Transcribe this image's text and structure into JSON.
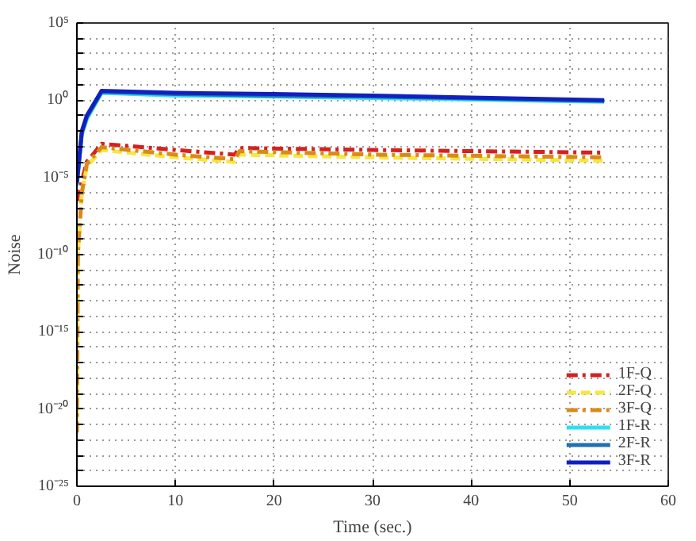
{
  "chart_data": {
    "type": "line",
    "xlabel": "Time (sec.)",
    "ylabel": "Noise",
    "log": "y",
    "grid": true,
    "legend": "bottom right",
    "marker": "none",
    "xlim": [
      0,
      60
    ],
    "xticks": [
      0,
      10,
      20,
      30,
      40,
      50,
      60
    ],
    "ylim": [
      1e-25,
      100000.0
    ],
    "yticks": [
      {
        "value": 1e-25,
        "label": "10⁻²⁵"
      },
      {
        "value": 1e-24,
        "label": null
      },
      {
        "value": 1e-23,
        "label": null
      },
      {
        "value": 1e-22,
        "label": null
      },
      {
        "value": 1e-21,
        "label": null
      },
      {
        "value": 1e-20,
        "label": "10⁻²⁰"
      },
      {
        "value": 1e-19,
        "label": null
      },
      {
        "value": 1e-18,
        "label": null
      },
      {
        "value": 1e-17,
        "label": null
      },
      {
        "value": 1e-16,
        "label": null
      },
      {
        "value": 1e-15,
        "label": "10⁻¹⁵"
      },
      {
        "value": 1e-14,
        "label": null
      },
      {
        "value": 1e-13,
        "label": null
      },
      {
        "value": 1e-12,
        "label": null
      },
      {
        "value": 1e-11,
        "label": null
      },
      {
        "value": 1e-10,
        "label": "10⁻¹⁰"
      },
      {
        "value": 1e-09,
        "label": null
      },
      {
        "value": 1e-08,
        "label": null
      },
      {
        "value": 1e-07,
        "label": null
      },
      {
        "value": 1e-06,
        "label": null
      },
      {
        "value": 1e-05,
        "label": "10⁻⁵"
      },
      {
        "value": 0.0001,
        "label": null
      },
      {
        "value": 0.001,
        "label": null
      },
      {
        "value": 0.01,
        "label": null
      },
      {
        "value": 0.1,
        "label": null
      },
      {
        "value": 1,
        "label": "10⁰"
      },
      {
        "value": 10,
        "label": null
      },
      {
        "value": 100,
        "label": null
      },
      {
        "value": 1000,
        "label": null
      },
      {
        "value": 10000,
        "label": null
      },
      {
        "value": 100000,
        "label": "10⁵"
      }
    ],
    "series": [
      {
        "name": "1F-Q",
        "color": "#d62020",
        "line_style": "dashdot",
        "x": [
          0,
          0.2,
          1,
          2.5,
          10,
          16,
          16.5,
          30,
          53.5
        ],
        "values": [
          3e-07,
          1e-06,
          0.0001,
          0.0015,
          0.0006,
          0.0003,
          0.0008,
          0.0006,
          0.0004
        ]
      },
      {
        "name": "2F-Q",
        "color": "#f5e642",
        "line_style": "dashed",
        "x": [
          0,
          0.1,
          0.5,
          1,
          2.5,
          10,
          16,
          16.5,
          30,
          53.5
        ],
        "values": [
          3e-22,
          1e-10,
          1e-06,
          5e-05,
          0.0006,
          0.0002,
          0.0001,
          0.0003,
          0.0002,
          0.00012
        ]
      },
      {
        "name": "3F-Q",
        "color": "#d98a1a",
        "line_style": "dashdot",
        "x": [
          0,
          0.1,
          0.5,
          1,
          2.5,
          10,
          16,
          16.5,
          30,
          53.5
        ],
        "values": [
          3e-22,
          1e-10,
          1e-06,
          7e-05,
          0.0009,
          0.0003,
          0.00015,
          0.0005,
          0.0003,
          0.0002
        ]
      },
      {
        "name": "1F-R",
        "color": "#30e0f0",
        "line_style": "solid",
        "x": [
          0,
          0.5,
          1,
          2.5,
          10,
          20,
          30,
          40,
          53.5
        ],
        "values": [
          3e-06,
          0.006,
          0.06,
          3,
          2,
          1.7,
          1.4,
          1.1,
          0.8
        ]
      },
      {
        "name": "2F-R",
        "color": "#2070b0",
        "line_style": "solid",
        "x": [
          0,
          0.5,
          1,
          2.5,
          10,
          20,
          30,
          40,
          53.5
        ],
        "values": [
          4e-06,
          0.008,
          0.08,
          3.5,
          2.5,
          2,
          1.7,
          1.3,
          0.9
        ]
      },
      {
        "name": "3F-R",
        "color": "#1020c0",
        "line_style": "solid",
        "x": [
          0,
          0.5,
          1,
          2.5,
          10,
          20,
          30,
          40,
          53.5
        ],
        "values": [
          5e-06,
          0.01,
          0.1,
          4,
          3,
          2.5,
          2,
          1.5,
          1
        ]
      }
    ]
  }
}
